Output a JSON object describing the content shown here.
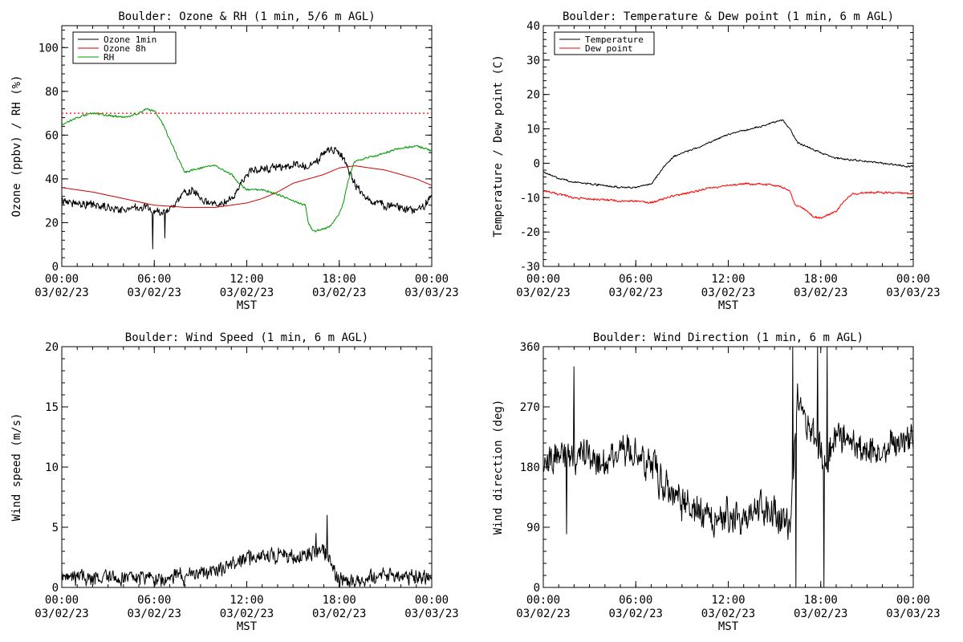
{
  "chart_data": [
    {
      "type": "line",
      "title": "Boulder: Ozone & RH (1 min, 5/6 m AGL)",
      "xlabel": "MST",
      "ylabel": "Ozone (ppbv) / RH (%)",
      "ylim": [
        0,
        110
      ],
      "yticks": [
        0,
        20,
        40,
        60,
        80,
        100
      ],
      "xlim_hours": [
        0,
        24
      ],
      "xticks": [
        {
          "hour": 0,
          "time": "00:00",
          "date": "03/02/23"
        },
        {
          "hour": 6,
          "time": "06:00",
          "date": "03/02/23"
        },
        {
          "hour": 12,
          "time": "12:00",
          "date": "03/02/23"
        },
        {
          "hour": 18,
          "time": "18:00",
          "date": "03/02/23"
        },
        {
          "hour": 24,
          "time": "00:00",
          "date": "03/03/23"
        }
      ],
      "legend_position": "top-left",
      "reference_line": {
        "y": 70,
        "color": "#ff0000",
        "style": "dotted"
      },
      "series": [
        {
          "name": "Ozone 1min",
          "color": "#000000",
          "noise": 2.2,
          "spikes": [
            [
              5.9,
              8
            ],
            [
              6.7,
              13
            ]
          ],
          "x": [
            0,
            1,
            2,
            3,
            4,
            5,
            5.5,
            6,
            6.5,
            7,
            7.5,
            8,
            8.5,
            9,
            10,
            11,
            11.5,
            12,
            12.5,
            13,
            14,
            15,
            16,
            16.5,
            17,
            17.5,
            18,
            18.5,
            19,
            19.5,
            20,
            21,
            22,
            23,
            23.5,
            24
          ],
          "y": [
            30,
            29,
            28,
            27,
            26,
            27,
            27,
            25,
            24,
            26,
            30,
            34,
            35,
            30,
            28,
            30,
            36,
            42,
            44,
            45,
            45,
            46,
            46,
            47,
            52,
            54,
            52,
            46,
            38,
            33,
            30,
            28,
            27,
            25,
            28,
            32
          ]
        },
        {
          "name": "Ozone 8h",
          "color": "#cc0000",
          "noise": 0,
          "x": [
            0,
            2,
            4,
            6,
            8,
            10,
            11,
            12,
            13,
            14,
            15,
            16,
            17,
            18,
            19,
            20,
            21,
            22,
            23,
            24
          ],
          "y": [
            36,
            34,
            31,
            28,
            27,
            27,
            28,
            29,
            31,
            34,
            38,
            40,
            42,
            45,
            46,
            45,
            44,
            42,
            40,
            37
          ]
        },
        {
          "name": "RH",
          "color": "#009900",
          "noise": 0.6,
          "x": [
            0,
            1,
            2,
            3,
            4,
            5,
            5.5,
            6,
            6.5,
            7,
            7.5,
            8,
            9,
            10,
            11,
            11.5,
            12,
            13,
            14,
            15,
            15.8,
            16,
            16.3,
            17,
            17.5,
            18,
            18.3,
            18.6,
            19,
            19.5,
            20,
            21,
            22,
            23,
            24
          ],
          "y": [
            65,
            68,
            70,
            69,
            68,
            70,
            72,
            71,
            66,
            58,
            50,
            43,
            45,
            46,
            42,
            38,
            35,
            35,
            33,
            30,
            28,
            20,
            16,
            17,
            19,
            24,
            30,
            40,
            48,
            49,
            50,
            52,
            54,
            55,
            53
          ]
        }
      ]
    },
    {
      "type": "line",
      "title": "Boulder: Temperature & Dew point (1 min, 6 m AGL)",
      "xlabel": "MST",
      "ylabel": "Temperature / Dew point (C)",
      "ylim": [
        -30,
        40
      ],
      "yticks": [
        -30,
        -20,
        -10,
        0,
        10,
        20,
        30,
        40
      ],
      "xlim_hours": [
        0,
        24
      ],
      "xticks": [
        {
          "hour": 0,
          "time": "00:00",
          "date": "03/02/23"
        },
        {
          "hour": 6,
          "time": "06:00",
          "date": "03/02/23"
        },
        {
          "hour": 12,
          "time": "12:00",
          "date": "03/02/23"
        },
        {
          "hour": 18,
          "time": "18:00",
          "date": "03/02/23"
        },
        {
          "hour": 24,
          "time": "00:00",
          "date": "03/03/23"
        }
      ],
      "legend_position": "top-left",
      "series": [
        {
          "name": "Temperature",
          "color": "#000000",
          "noise": 0.3,
          "x": [
            0,
            1,
            2,
            3,
            4,
            5,
            6,
            7,
            7.5,
            8,
            8.5,
            9,
            10,
            11,
            12,
            13,
            14,
            15,
            15.5,
            16,
            16.5,
            17,
            18,
            19,
            20,
            21,
            22,
            23,
            23.5,
            24
          ],
          "y": [
            -2.5,
            -4.5,
            -5.5,
            -6,
            -6.5,
            -7,
            -7,
            -6,
            -3,
            0,
            2,
            3,
            4.5,
            6.5,
            8.5,
            9.5,
            10.5,
            12,
            12.5,
            10,
            6,
            5,
            3,
            1.5,
            1,
            0.5,
            0,
            -0.5,
            -1,
            -1
          ]
        },
        {
          "name": "Dew point",
          "color": "#ff0000",
          "noise": 0.35,
          "x": [
            0,
            1,
            2,
            3,
            4,
            5,
            6,
            7,
            8,
            9,
            10,
            11,
            12,
            13,
            14,
            15,
            15.5,
            16,
            16.3,
            16.8,
            17.5,
            18,
            18.5,
            19,
            19.5,
            20,
            21,
            22,
            23,
            24
          ],
          "y": [
            -8,
            -9,
            -10,
            -10.5,
            -10.5,
            -11,
            -11,
            -11.5,
            -10,
            -9,
            -8,
            -7,
            -6.5,
            -6,
            -6,
            -6.5,
            -7,
            -8,
            -12,
            -13,
            -15.5,
            -16,
            -15,
            -14,
            -11,
            -9,
            -8.5,
            -8.5,
            -8.5,
            -9
          ]
        }
      ]
    },
    {
      "type": "line",
      "title": "Boulder: Wind Speed (1 min, 6 m AGL)",
      "xlabel": "MST",
      "ylabel": "Wind speed (m/s)",
      "ylim": [
        0,
        20
      ],
      "yticks": [
        0,
        5,
        10,
        15,
        20
      ],
      "xlim_hours": [
        0,
        24
      ],
      "xticks": [
        {
          "hour": 0,
          "time": "00:00",
          "date": "03/02/23"
        },
        {
          "hour": 6,
          "time": "06:00",
          "date": "03/02/23"
        },
        {
          "hour": 12,
          "time": "12:00",
          "date": "03/02/23"
        },
        {
          "hour": 18,
          "time": "18:00",
          "date": "03/02/23"
        },
        {
          "hour": 24,
          "time": "00:00",
          "date": "03/03/23"
        }
      ],
      "legend_position": "none",
      "series": [
        {
          "name": "",
          "color": "#000000",
          "noise": 0.75,
          "floor": 0,
          "spikes": [
            [
              17.2,
              6
            ],
            [
              16.5,
              4.5
            ]
          ],
          "x": [
            0,
            2,
            4,
            6,
            8,
            9,
            10,
            11,
            12,
            13,
            14,
            15,
            16,
            17,
            17.5,
            18,
            19,
            20,
            21,
            22,
            23,
            24
          ],
          "y": [
            0.8,
            0.8,
            0.8,
            0.8,
            0.9,
            1.2,
            1.5,
            1.8,
            2.5,
            2.8,
            2.6,
            2.5,
            2.8,
            3.2,
            2,
            0.6,
            0.5,
            0.7,
            0.9,
            1,
            0.9,
            0.8
          ]
        }
      ]
    },
    {
      "type": "line",
      "title": "Boulder: Wind Direction (1 min, 6 m AGL)",
      "xlabel": "MST",
      "ylabel": "Wind direction (deg)",
      "ylim": [
        0,
        360
      ],
      "yticks": [
        0,
        90,
        180,
        270,
        360
      ],
      "xlim_hours": [
        0,
        24
      ],
      "xticks": [
        {
          "hour": 0,
          "time": "00:00",
          "date": "03/02/23"
        },
        {
          "hour": 6,
          "time": "06:00",
          "date": "03/02/23"
        },
        {
          "hour": 12,
          "time": "12:00",
          "date": "03/02/23"
        },
        {
          "hour": 18,
          "time": "18:00",
          "date": "03/02/23"
        },
        {
          "hour": 24,
          "time": "00:00",
          "date": "03/03/23"
        }
      ],
      "legend_position": "none",
      "series": [
        {
          "name": "",
          "color": "#000000",
          "noise": 30,
          "floor": 0,
          "ceil": 360,
          "spikes": [
            [
              16.2,
              360
            ],
            [
              16.4,
              0
            ],
            [
              17.8,
              360
            ],
            [
              18.2,
              0
            ],
            [
              18.4,
              360
            ],
            [
              2.0,
              330
            ],
            [
              1.5,
              80
            ]
          ],
          "x": [
            0,
            1,
            2,
            3,
            4,
            5,
            6,
            6.5,
            7,
            7.5,
            8,
            9,
            10,
            11,
            12,
            13,
            14,
            15,
            15.5,
            16,
            16.5,
            17,
            17.5,
            18,
            18.5,
            19,
            20,
            21,
            22,
            23,
            24
          ],
          "y": [
            190,
            200,
            200,
            195,
            190,
            200,
            200,
            195,
            180,
            165,
            150,
            130,
            110,
            95,
            110,
            100,
            115,
            110,
            105,
            90,
            290,
            240,
            230,
            200,
            200,
            230,
            220,
            200,
            210,
            220,
            215
          ]
        }
      ]
    }
  ]
}
